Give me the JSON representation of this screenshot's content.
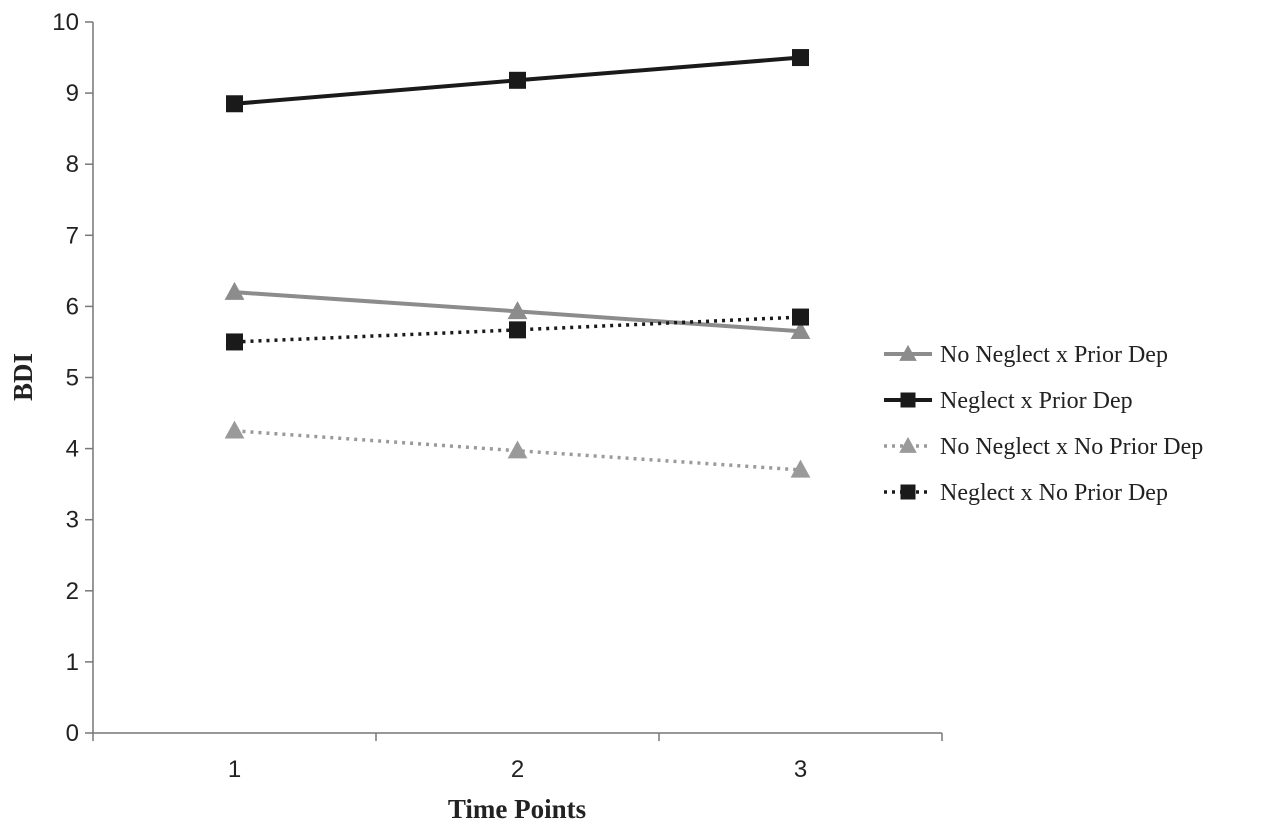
{
  "chart_data": {
    "type": "line",
    "title": "",
    "xlabel": "Time Points",
    "ylabel": "BDI",
    "x": [
      1,
      2,
      3
    ],
    "xticks": [
      "1",
      "2",
      "3"
    ],
    "ylim": [
      0,
      10
    ],
    "yticks": [
      "0",
      "1",
      "2",
      "3",
      "4",
      "5",
      "6",
      "7",
      "8",
      "9",
      "10"
    ],
    "grid": false,
    "legend_position": "right",
    "series": [
      {
        "name": "No Neglect x Prior Dep",
        "values": [
          6.2,
          5.93,
          5.65
        ],
        "color": "#8c8c8c",
        "marker": "triangle",
        "line_style": "solid"
      },
      {
        "name": "Neglect x Prior Dep",
        "values": [
          8.85,
          9.18,
          9.5
        ],
        "color": "#1a1a1a",
        "marker": "square",
        "line_style": "solid"
      },
      {
        "name": "No Neglect x No Prior Dep",
        "values": [
          4.25,
          3.97,
          3.7
        ],
        "color": "#9a9a9a",
        "marker": "triangle",
        "line_style": "dotted"
      },
      {
        "name": "Neglect x No Prior Dep",
        "values": [
          5.5,
          5.67,
          5.85
        ],
        "color": "#1a1a1a",
        "marker": "square",
        "line_style": "dotted"
      }
    ]
  }
}
